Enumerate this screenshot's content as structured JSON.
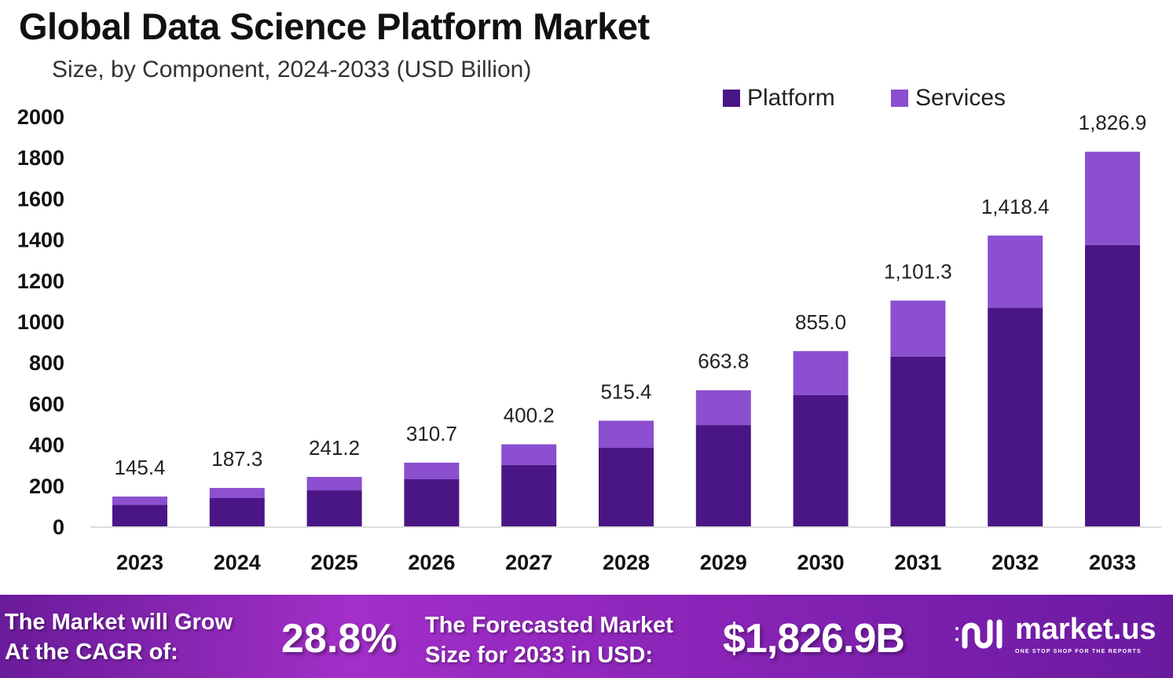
{
  "chart_data": {
    "type": "stacked-bar",
    "title": "Global Data Science Platform Market",
    "subtitle": "Size, by Component, 2024-2033 (USD Billion)",
    "categories": [
      "2023",
      "2024",
      "2025",
      "2026",
      "2027",
      "2028",
      "2029",
      "2030",
      "2031",
      "2032",
      "2033"
    ],
    "series": [
      {
        "name": "Platform",
        "color": "#4a1685",
        "values": [
          105,
          138,
          176,
          230,
          299,
          383,
          494,
          640,
          828,
          1065,
          1372
        ]
      },
      {
        "name": "Services",
        "color": "#8b4fcf",
        "values": [
          40.4,
          49.3,
          65.2,
          80.7,
          101.2,
          132.4,
          169.8,
          215.0,
          273.3,
          353.4,
          454.9
        ]
      }
    ],
    "totals": [
      145.4,
      187.3,
      241.2,
      310.7,
      400.2,
      515.4,
      663.8,
      855.0,
      1101.3,
      1418.4,
      1826.9
    ],
    "total_labels": [
      "145.4",
      "187.3",
      "241.2",
      "310.7",
      "400.2",
      "515.4",
      "663.8",
      "855.0",
      "1,101.3",
      "1,418.4",
      "1,826.9"
    ],
    "ylim": [
      0,
      2000
    ],
    "yticks": [
      "0",
      "200",
      "400",
      "600",
      "800",
      "1000",
      "1200",
      "1400",
      "1600",
      "1800",
      "2000"
    ],
    "grid": false,
    "legend_position": "top-right"
  },
  "footer": {
    "cagr_label_line1": "The Market will Grow",
    "cagr_label_line2": "At the CAGR of:",
    "cagr_value": "28.8%",
    "forecast_label_line1": "The Forecasted Market",
    "forecast_label_line2": "Size for 2033 in USD:",
    "forecast_value": "$1,826.9B",
    "brand": "market.us",
    "brand_tagline": "ONE STOP SHOP FOR THE REPORTS",
    "background_color": "#9b2bc4"
  }
}
